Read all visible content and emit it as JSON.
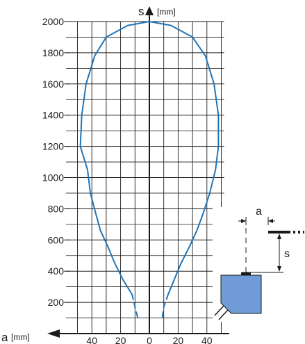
{
  "chart_data": {
    "type": "line",
    "title": "",
    "x_axis": {
      "symbol": "a",
      "unit": "[mm]",
      "ticks": [
        40,
        20,
        0,
        20,
        40
      ],
      "tick_values": [
        -40,
        -20,
        0,
        20,
        40
      ],
      "range": [
        -52,
        52
      ]
    },
    "y_axis": {
      "symbol": "s",
      "unit": "[mm]",
      "ticks": [
        200,
        400,
        600,
        800,
        1000,
        1200,
        1400,
        1600,
        1800,
        2000
      ],
      "range": [
        0,
        2000
      ]
    },
    "grid": true,
    "series": [
      {
        "style": "solid",
        "color": "#1f74b8",
        "points": [
          [
            -12,
            250
          ],
          [
            -18,
            340
          ],
          [
            -24,
            450
          ],
          [
            -29,
            560
          ],
          [
            -34,
            660
          ],
          [
            -37,
            760
          ],
          [
            -41,
            900
          ],
          [
            -43,
            1050
          ],
          [
            -48,
            1200
          ],
          [
            -47,
            1400
          ],
          [
            -44,
            1600
          ],
          [
            -38,
            1780
          ],
          [
            -30,
            1900
          ],
          [
            -15,
            1975
          ],
          [
            0,
            2000
          ],
          [
            15,
            1975
          ],
          [
            30,
            1900
          ],
          [
            39,
            1780
          ],
          [
            45,
            1600
          ],
          [
            48,
            1400
          ],
          [
            48,
            1200
          ],
          [
            46,
            1050
          ],
          [
            42,
            900
          ],
          [
            37,
            760
          ],
          [
            33,
            660
          ],
          [
            28,
            560
          ],
          [
            22,
            450
          ],
          [
            17,
            340
          ],
          [
            13,
            250
          ]
        ]
      },
      {
        "style": "dashed",
        "color": "#1f74b8",
        "points": [
          [
            -12,
            250
          ],
          [
            -10,
            170
          ],
          [
            -8,
            100
          ]
        ]
      },
      {
        "style": "dashed",
        "color": "#1f74b8",
        "points": [
          [
            13,
            250
          ],
          [
            10,
            170
          ],
          [
            9,
            100
          ]
        ]
      }
    ]
  },
  "diagram": {
    "label_a": "a",
    "label_s": "s",
    "sensor_color": "#6f9bd6"
  }
}
